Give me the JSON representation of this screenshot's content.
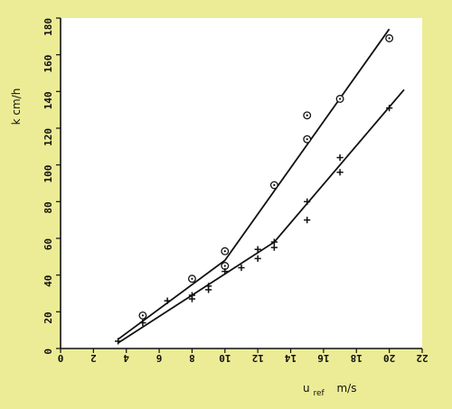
{
  "chart_data": {
    "type": "scatter",
    "title": "",
    "xlabel": {
      "main": "u",
      "sub": "ref",
      "unit": "m/s"
    },
    "ylabel": "k  cm/h",
    "xlim": [
      0,
      22
    ],
    "ylim": [
      0,
      180
    ],
    "xticks": [
      0,
      2,
      4,
      6,
      8,
      10,
      12,
      14,
      16,
      18,
      20,
      22
    ],
    "xtick_labels": [
      "0",
      "2",
      "4",
      "6",
      "8",
      "10",
      "12",
      "14",
      "16",
      "18",
      "20",
      "22"
    ],
    "xtick_labels_flipped": true,
    "yticks": [
      0,
      20,
      40,
      60,
      80,
      100,
      120,
      140,
      160,
      180
    ],
    "ytick_labels": [
      "0",
      "20",
      "40",
      "60",
      "80",
      "100",
      "120",
      "140",
      "160",
      "180"
    ],
    "grid": false,
    "legend": "none",
    "colors": {
      "background": "#ecec96",
      "plot_area": "#ffffff",
      "ink": "#111111"
    },
    "series": [
      {
        "marker": "circle-dot",
        "points": [
          {
            "x": 5.0,
            "y": 18
          },
          {
            "x": 8.0,
            "y": 38
          },
          {
            "x": 10.0,
            "y": 45
          },
          {
            "x": 10.0,
            "y": 53
          },
          {
            "x": 13.0,
            "y": 89
          },
          {
            "x": 15.0,
            "y": 114
          },
          {
            "x": 15.0,
            "y": 127
          },
          {
            "x": 17.0,
            "y": 136
          },
          {
            "x": 20.0,
            "y": 169
          }
        ],
        "fit_line": [
          {
            "x": 3.5,
            "y": 5
          },
          {
            "x": 10.0,
            "y": 48
          },
          {
            "x": 20.0,
            "y": 174
          }
        ]
      },
      {
        "marker": "plus",
        "points": [
          {
            "x": 3.5,
            "y": 4
          },
          {
            "x": 5.0,
            "y": 14
          },
          {
            "x": 6.5,
            "y": 26
          },
          {
            "x": 8.0,
            "y": 27
          },
          {
            "x": 8.0,
            "y": 29
          },
          {
            "x": 9.0,
            "y": 32
          },
          {
            "x": 9.0,
            "y": 34
          },
          {
            "x": 10.0,
            "y": 42
          },
          {
            "x": 11.0,
            "y": 44
          },
          {
            "x": 12.0,
            "y": 49
          },
          {
            "x": 12.0,
            "y": 54
          },
          {
            "x": 13.0,
            "y": 55
          },
          {
            "x": 13.0,
            "y": 58
          },
          {
            "x": 15.0,
            "y": 70
          },
          {
            "x": 15.0,
            "y": 80
          },
          {
            "x": 17.0,
            "y": 96
          },
          {
            "x": 17.0,
            "y": 104
          },
          {
            "x": 20.0,
            "y": 131
          }
        ],
        "fit_line": [
          {
            "x": 3.5,
            "y": 3
          },
          {
            "x": 13.0,
            "y": 58
          },
          {
            "x": 20.9,
            "y": 141
          }
        ]
      }
    ]
  }
}
